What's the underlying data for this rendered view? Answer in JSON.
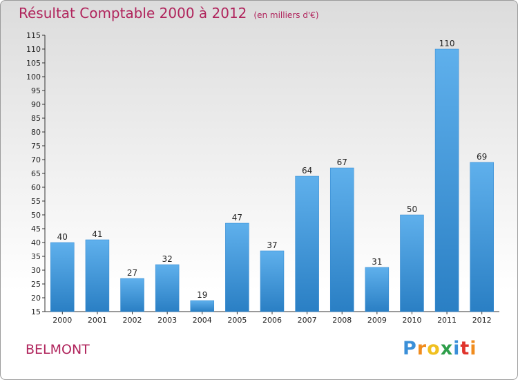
{
  "header": {
    "title": "Résultat Comptable 2000 à 2012",
    "unit": "(en milliers d'€)"
  },
  "footer": {
    "commune": "BELMONT",
    "logo_letters": [
      "P",
      "r",
      "o",
      "x",
      "i",
      "t",
      "i"
    ],
    "logo_colors": [
      "#3a8fd8",
      "#f08c1e",
      "#f0c020",
      "#2e9e4a",
      "#3a8fd8",
      "#e0342c",
      "#f08c1e"
    ]
  },
  "chart_data": {
    "type": "bar",
    "title": "Résultat Comptable 2000 à 2012",
    "categories": [
      "2000",
      "2001",
      "2002",
      "2003",
      "2004",
      "2005",
      "2006",
      "2007",
      "2008",
      "2009",
      "2010",
      "2011",
      "2012"
    ],
    "values": [
      40,
      41,
      27,
      32,
      19,
      47,
      37,
      64,
      67,
      31,
      50,
      110,
      69
    ],
    "ylim": [
      15,
      115
    ],
    "ytick_step": 5,
    "grid": false,
    "bar_color": "#3f96d9",
    "data_labels": true
  }
}
